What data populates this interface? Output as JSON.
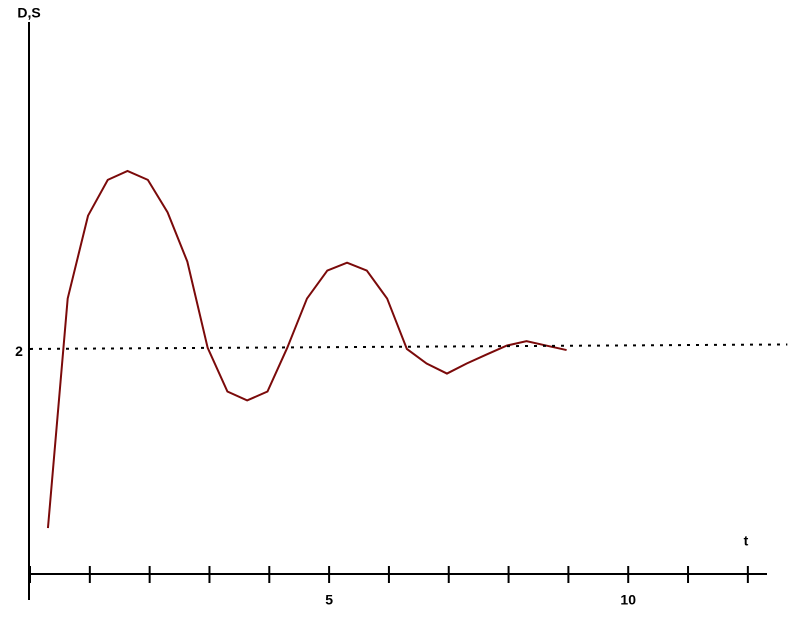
{
  "chart_data": {
    "type": "line",
    "xlabel": "t",
    "ylabel": "D,S",
    "x": [
      0.3,
      0.63,
      0.97,
      1.3,
      1.63,
      1.97,
      2.3,
      2.63,
      2.97,
      3.3,
      3.63,
      3.97,
      4.3,
      4.63,
      4.97,
      5.3,
      5.63,
      5.97,
      6.3,
      6.63,
      6.97,
      7.3,
      7.63,
      7.97,
      8.3,
      8.63,
      8.97
    ],
    "series": [
      {
        "color": "#7b0a0a",
        "style": "solid",
        "x": [
          0.3,
          0.63,
          0.97,
          1.3,
          1.63,
          1.97,
          2.3,
          2.63,
          2.97,
          3.3,
          3.63,
          3.97,
          4.3,
          4.63,
          4.97,
          5.3,
          5.63,
          5.97,
          6.3,
          6.63,
          6.97,
          7.3,
          7.63,
          7.97,
          8.3,
          8.63,
          8.97
        ],
        "values": [
          0.41,
          2.46,
          3.2,
          3.52,
          3.6,
          3.52,
          3.23,
          2.79,
          2.02,
          1.63,
          1.55,
          1.63,
          2.02,
          2.46,
          2.71,
          2.78,
          2.71,
          2.46,
          2.01,
          1.88,
          1.79,
          1.88,
          1.96,
          2.04,
          2.08,
          2.04,
          2.0
        ]
      },
      {
        "color": "#000000",
        "style": "dotted",
        "x": [
          0,
          12.66
        ],
        "values": [
          2.01,
          2.05
        ]
      }
    ],
    "xlim": [
      0,
      12.32
    ],
    "ylim": [
      0,
      4.93
    ],
    "xticks": [
      {
        "value": 0,
        "label": null
      },
      {
        "value": 1,
        "label": null
      },
      {
        "value": 2,
        "label": null
      },
      {
        "value": 3,
        "label": null
      },
      {
        "value": 4,
        "label": null
      },
      5,
      {
        "value": 6,
        "label": null
      },
      {
        "value": 7,
        "label": null
      },
      {
        "value": 8,
        "label": null
      },
      {
        "value": 9,
        "label": null
      },
      10,
      {
        "value": 11,
        "label": null
      },
      {
        "value": 12,
        "label": null
      }
    ],
    "yticks": [
      2
    ],
    "grid": false
  }
}
